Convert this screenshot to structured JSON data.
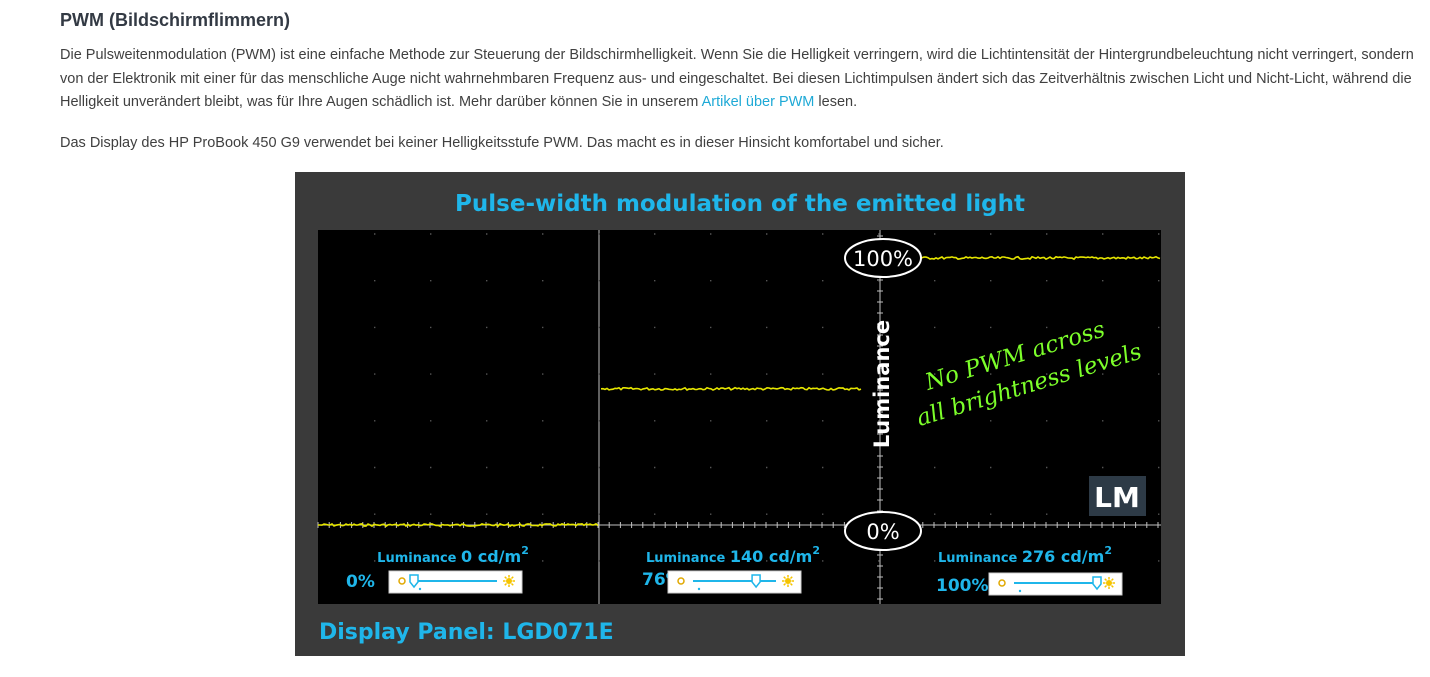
{
  "section": {
    "title": "PWM (Bildschirmflimmern)",
    "paragraph1_before_link": "Die Pulsweitenmodulation (PWM) ist eine einfache Methode zur Steuerung der Bildschirmhelligkeit. Wenn Sie die Helligkeit verringern, wird die Lichtintensität der Hintergrundbeleuchtung nicht verringert, sondern von der Elektronik mit einer für das menschliche Auge nicht wahrnehmbaren Frequenz aus- und eingeschaltet. Bei diesen Lichtimpulsen ändert sich das Zeitverhältnis zwischen Licht und Nicht-Licht, während die Helligkeit unverändert bleibt, was für Ihre Augen schädlich ist. Mehr darüber können Sie in unserem ",
    "link_text": "Artikel über PWM",
    "paragraph1_after_link": " lesen.",
    "paragraph2": "Das Display des HP ProBook 450 G9 verwendet bei keiner Helligkeitsstufe PWM. Das macht es in dieser Hinsicht komfortabel und sicher."
  },
  "chart_data": {
    "type": "line",
    "title": "Pulse-width modulation of the emitted light",
    "ylabel": "Luminance",
    "ylim": [
      0,
      100
    ],
    "y_markers": [
      "100%",
      "0%"
    ],
    "annotation_line1": "No PWM across",
    "annotation_line2": "all brightness levels",
    "footer": "Display Panel: LGD071E",
    "logo_text": "LM",
    "grid": true,
    "panels": [
      {
        "brightness_setting": "0%",
        "slider_fraction": 0.0,
        "luminance_label": "Luminance",
        "luminance_value": "0 cd/m",
        "luminance_exp": "2",
        "level_percent": 0
      },
      {
        "brightness_setting": "76%",
        "slider_fraction": 0.76,
        "luminance_label": "Luminance",
        "luminance_value": "140 cd/m",
        "luminance_exp": "2",
        "level_percent": 51
      },
      {
        "brightness_setting": "100%",
        "slider_fraction": 1.0,
        "luminance_label": "Luminance",
        "luminance_value": "276 cd/m",
        "luminance_exp": "2",
        "level_percent": 100
      }
    ],
    "colors": {
      "background": "#3a3a3a",
      "plot": "#000000",
      "trace": "#e6e600",
      "accent": "#1fb6ea",
      "annotation": "#7cff2a"
    }
  }
}
